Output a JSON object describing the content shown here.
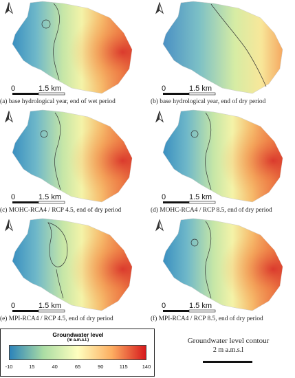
{
  "panels": [
    {
      "caption": "(a) base hydrological year, end of wet period",
      "scale_zero": "0",
      "scale_dist": "1.5 km"
    },
    {
      "caption": "(b) base hydrological year, end of dry period",
      "scale_zero": "0",
      "scale_dist": "1.5 km"
    },
    {
      "caption": "(c) MOHC-RCA4 / RCP 4.5, end of dry period",
      "scale_zero": "0",
      "scale_dist": "1.5 km"
    },
    {
      "caption": "(d) MOHC-RCA4 / RCP 8.5, end of dry period",
      "scale_zero": "0",
      "scale_dist": "1.5 km"
    },
    {
      "caption": "(e) MPI-RCA4 / RCP 4.5, end of dry period",
      "scale_zero": "0",
      "scale_dist": "1.5 km"
    },
    {
      "caption": "(f) MPI-RCA4 / RCP 8.5, end of dry period",
      "scale_zero": "0",
      "scale_dist": "1.5 km"
    }
  ],
  "legend": {
    "title": "Groundwater level",
    "unit": "(m a.m.s.l.)",
    "ticks": [
      "-10",
      "15",
      "40",
      "65",
      "90",
      "115",
      "140"
    ],
    "colors": [
      "#2b83ba",
      "#abdda4",
      "#ffffbf",
      "#fdae61",
      "#d7191c"
    ]
  },
  "contour_legend": {
    "title": "Groundwater level contour",
    "value": "2 m a.m.s.l"
  },
  "icons": {
    "north_arrow": "north-arrow-icon"
  }
}
